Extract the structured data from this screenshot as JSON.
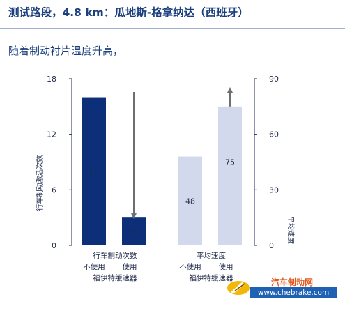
{
  "header": {
    "title": "测试路段，4.8 km：瓜地斯-格拿纳达（西班牙）",
    "subtitle": "随着制动衬片温度升高，"
  },
  "chart_data": {
    "type": "bar",
    "left_axis": {
      "label": "行车制动激活次数",
      "range": [
        0,
        18
      ],
      "ticks": [
        0,
        6,
        12,
        18
      ]
    },
    "right_axis": {
      "label": "平均速度",
      "range": [
        0,
        90
      ],
      "ticks": [
        0,
        30,
        60,
        90
      ]
    },
    "groups": [
      {
        "name": "行车制动次数",
        "axis": "left",
        "categories": [
          "不使用",
          "使用"
        ],
        "values": [
          16,
          3
        ],
        "value_labels": [
          "16",
          "3"
        ],
        "color": "#0d2f7a",
        "arrow": "down"
      },
      {
        "name": "平均速度",
        "axis": "right",
        "categories": [
          "不使用",
          "使用"
        ],
        "values": [
          48,
          75
        ],
        "value_labels": [
          "48",
          "75"
        ],
        "color": "#d3d9ec",
        "arrow": "up"
      }
    ],
    "shared_caption": "福伊特缓速器"
  },
  "watermark": {
    "logo_icon": "brake-caliper-logo-icon",
    "name": "汽车制动网",
    "url": "www.chebrake.com"
  }
}
